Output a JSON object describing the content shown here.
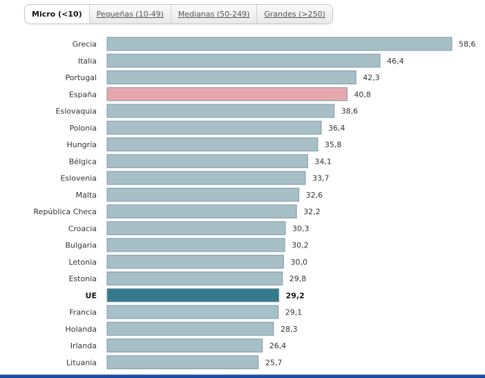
{
  "tabs": [
    {
      "label": "Micro (<10)",
      "active": true
    },
    {
      "label": "Pequeñas (10-49)",
      "active": false
    },
    {
      "label": "Medianas (50-249)",
      "active": false
    },
    {
      "label": "Grandes (>250)",
      "active": false
    }
  ],
  "colors": {
    "bar_default": "#a7c0c7",
    "bar_spain": "#e6a8ad",
    "bar_eu": "#35798c",
    "bar_border": "#7e9aa3"
  },
  "chart_data": {
    "type": "bar",
    "orientation": "horizontal",
    "categories": [
      "Grecia",
      "Italia",
      "Portugal",
      "España",
      "Eslovaquia",
      "Polonia",
      "Hungría",
      "Bélgica",
      "Eslovenia",
      "Malta",
      "República Checa",
      "Croacia",
      "Bulgaria",
      "Letonia",
      "Estonia",
      "UE",
      "Francia",
      "Holanda",
      "Irlanda",
      "Lituania"
    ],
    "values": [
      58.6,
      46.4,
      42.3,
      40.8,
      38.6,
      36.4,
      35.8,
      34.1,
      33.7,
      32.6,
      32.2,
      30.3,
      30.2,
      30.0,
      29.8,
      29.2,
      29.1,
      28.3,
      26.4,
      25.7
    ],
    "value_labels": [
      "58,6",
      "46,4",
      "42,3",
      "40,8",
      "38,6",
      "36,4",
      "35,8",
      "34,1",
      "33,7",
      "32,6",
      "32,2",
      "30,3",
      "30,2",
      "30,0",
      "29,8",
      "29,2",
      "29,1",
      "28,3",
      "26,4",
      "25,7"
    ],
    "highlighted": {
      "España": "spain",
      "UE": "eu"
    },
    "title": "",
    "xlabel": "",
    "ylabel": "",
    "xlim": [
      0,
      58.6
    ],
    "grid": false,
    "legend": "none"
  }
}
